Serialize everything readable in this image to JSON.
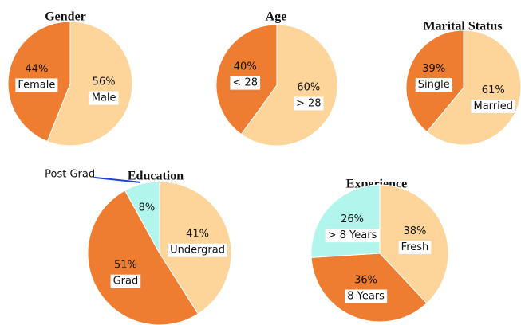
{
  "chart_data": [
    {
      "type": "pie",
      "title": "Gender",
      "categories": [
        "Male",
        "Female"
      ],
      "values": [
        56,
        44
      ],
      "value_labels": [
        "56%",
        "44%"
      ],
      "colors": [
        "#fdd59a",
        "#ee7d31"
      ]
    },
    {
      "type": "pie",
      "title": "Age",
      "categories": [
        "> 28",
        "< 28"
      ],
      "values": [
        60,
        40
      ],
      "value_labels": [
        "60%",
        "40%"
      ],
      "colors": [
        "#fdd59a",
        "#ee7d31"
      ]
    },
    {
      "type": "pie",
      "title": "Marital Status",
      "categories": [
        "Married",
        "Single"
      ],
      "values": [
        61,
        39
      ],
      "value_labels": [
        "61%",
        "39%"
      ],
      "colors": [
        "#fdd59a",
        "#ee7d31"
      ]
    },
    {
      "type": "pie",
      "title": "Education",
      "categories": [
        "Undergrad",
        "Grad",
        "Post Grad"
      ],
      "values": [
        41,
        51,
        8
      ],
      "value_labels": [
        "41%",
        "51%",
        "8%"
      ],
      "colors": [
        "#fdd59a",
        "#ee7d31",
        "#b2f5ec"
      ]
    },
    {
      "type": "pie",
      "title": "Experience",
      "categories": [
        "Fresh",
        "8 Years",
        "> 8 Years"
      ],
      "values": [
        38,
        36,
        26
      ],
      "value_labels": [
        "38%",
        "36%",
        "26%"
      ],
      "colors": [
        "#fdd59a",
        "#ee7d31",
        "#b2f5ec"
      ]
    }
  ]
}
